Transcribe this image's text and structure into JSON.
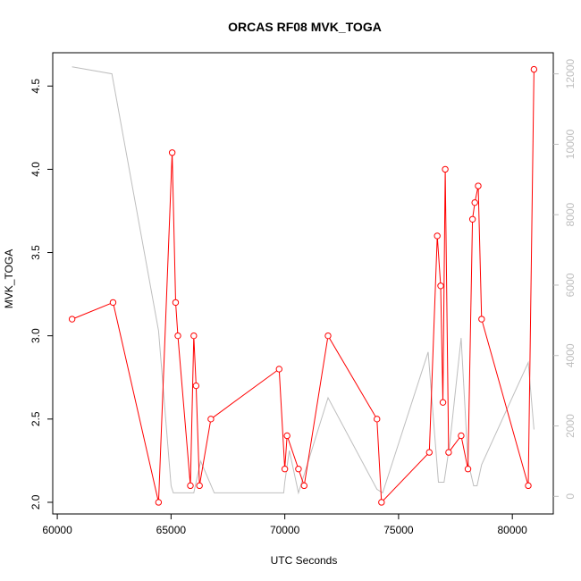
{
  "chart_data": {
    "type": "line",
    "title": "ORCAS RF08 MVK_TOGA",
    "xlabel": "UTC Seconds",
    "ylabel": "MVK_TOGA",
    "xlim": [
      59800,
      81800
    ],
    "ylim": [
      1.93,
      4.7
    ],
    "y2lim": [
      -500,
      12600
    ],
    "x_ticks": [
      60000,
      65000,
      70000,
      75000,
      80000
    ],
    "y_ticks": [
      2.0,
      2.5,
      3.0,
      3.5,
      4.0,
      4.5
    ],
    "y2_ticks": [
      0,
      2000,
      4000,
      6000,
      8000,
      10000,
      12000
    ],
    "colors": {
      "primary": "#ff0000",
      "secondary": "#bebebe"
    },
    "series": [
      {
        "axis": "left",
        "style": "line+points",
        "x": [
          60650,
          62450,
          64450,
          65050,
          65200,
          65300,
          65850,
          66000,
          66100,
          66250,
          66750,
          69750,
          70000,
          70100,
          70600,
          70850,
          71900,
          74050,
          74250,
          76350,
          76700,
          76850,
          76950,
          77050,
          77200,
          77750,
          78050,
          78250,
          78350,
          78500,
          78650,
          80700,
          80950
        ],
        "y": [
          3.1,
          3.2,
          2.0,
          4.1,
          3.2,
          3.0,
          2.1,
          3.0,
          2.7,
          2.1,
          2.5,
          2.8,
          2.2,
          2.4,
          2.2,
          2.1,
          3.0,
          2.5,
          2.0,
          2.3,
          3.6,
          3.3,
          2.6,
          4.0,
          2.3,
          2.4,
          2.2,
          3.7,
          3.8,
          3.9,
          3.1,
          2.1,
          4.6
        ]
      },
      {
        "axis": "right",
        "style": "line",
        "x": [
          60650,
          62400,
          64450,
          65000,
          65100,
          66000,
          66300,
          66900,
          69950,
          70000,
          70200,
          70600,
          71900,
          74050,
          74300,
          76300,
          76750,
          77000,
          77250,
          77750,
          78050,
          78300,
          78450,
          78650,
          80700,
          80950
        ],
        "y": [
          12200,
          12000,
          4700,
          300,
          100,
          100,
          1000,
          100,
          100,
          400,
          1300,
          100,
          2800,
          200,
          100,
          4100,
          400,
          400,
          1500,
          4500,
          1000,
          300,
          300,
          900,
          3800,
          1900
        ]
      }
    ]
  }
}
